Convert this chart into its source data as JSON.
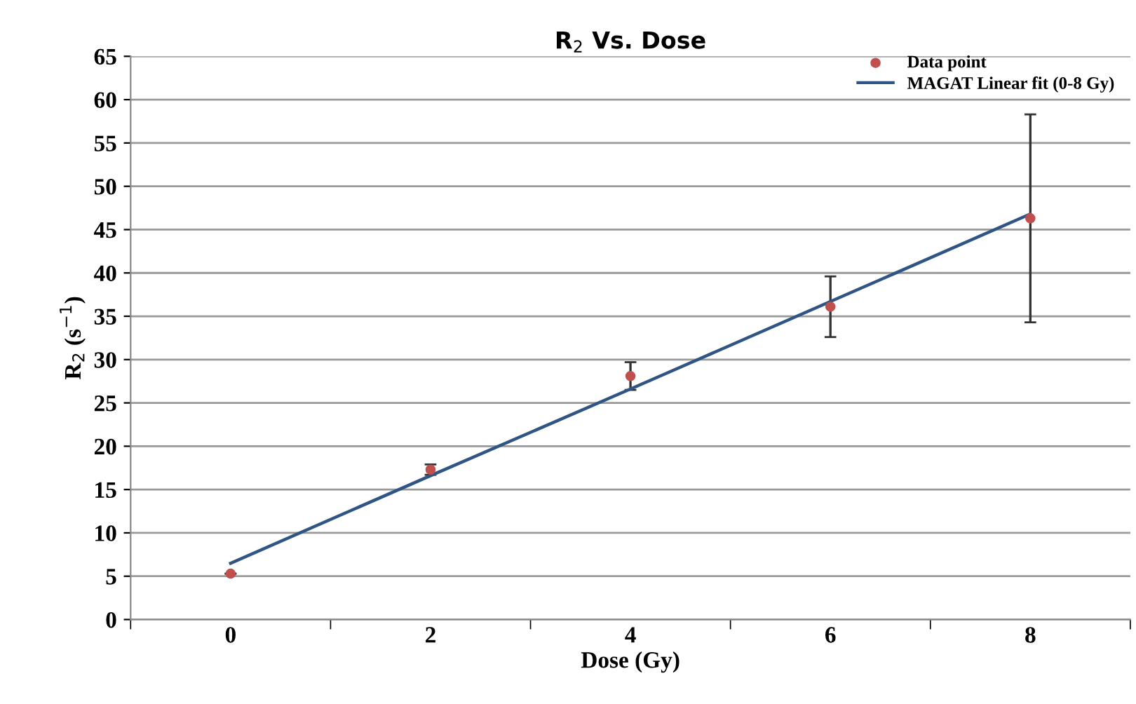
{
  "chart_data": {
    "type": "scatter",
    "title": "R$_{2}$ Vs. Dose",
    "xlabel": "Dose (Gy)",
    "ylabel": "R$_{2}$ (s$^{−1}$)",
    "categories": [
      "0",
      "2",
      "4",
      "6",
      "8"
    ],
    "series": [
      {
        "name": "Data point",
        "color": "#c0504d",
        "marker": "circle",
        "values": [
          5.3,
          17.3,
          28.1,
          36.1,
          46.3
        ],
        "errors": [
          null,
          0.6,
          1.6,
          3.5,
          12
        ]
      },
      {
        "name": "MAGAT Linear fit (0-8 Gy)",
        "type": "line",
        "color": "#2e5584",
        "marker": "none",
        "line_style": "solid",
        "values": [
          6.5,
          16.6,
          26.6,
          36.7,
          46.8
        ]
      }
    ],
    "ylim": [
      0,
      65
    ],
    "yticks": [
      0,
      5,
      10,
      15,
      20,
      25,
      30,
      35,
      40,
      45,
      50,
      55,
      60,
      65
    ],
    "grid": "y",
    "legend": "top right"
  }
}
